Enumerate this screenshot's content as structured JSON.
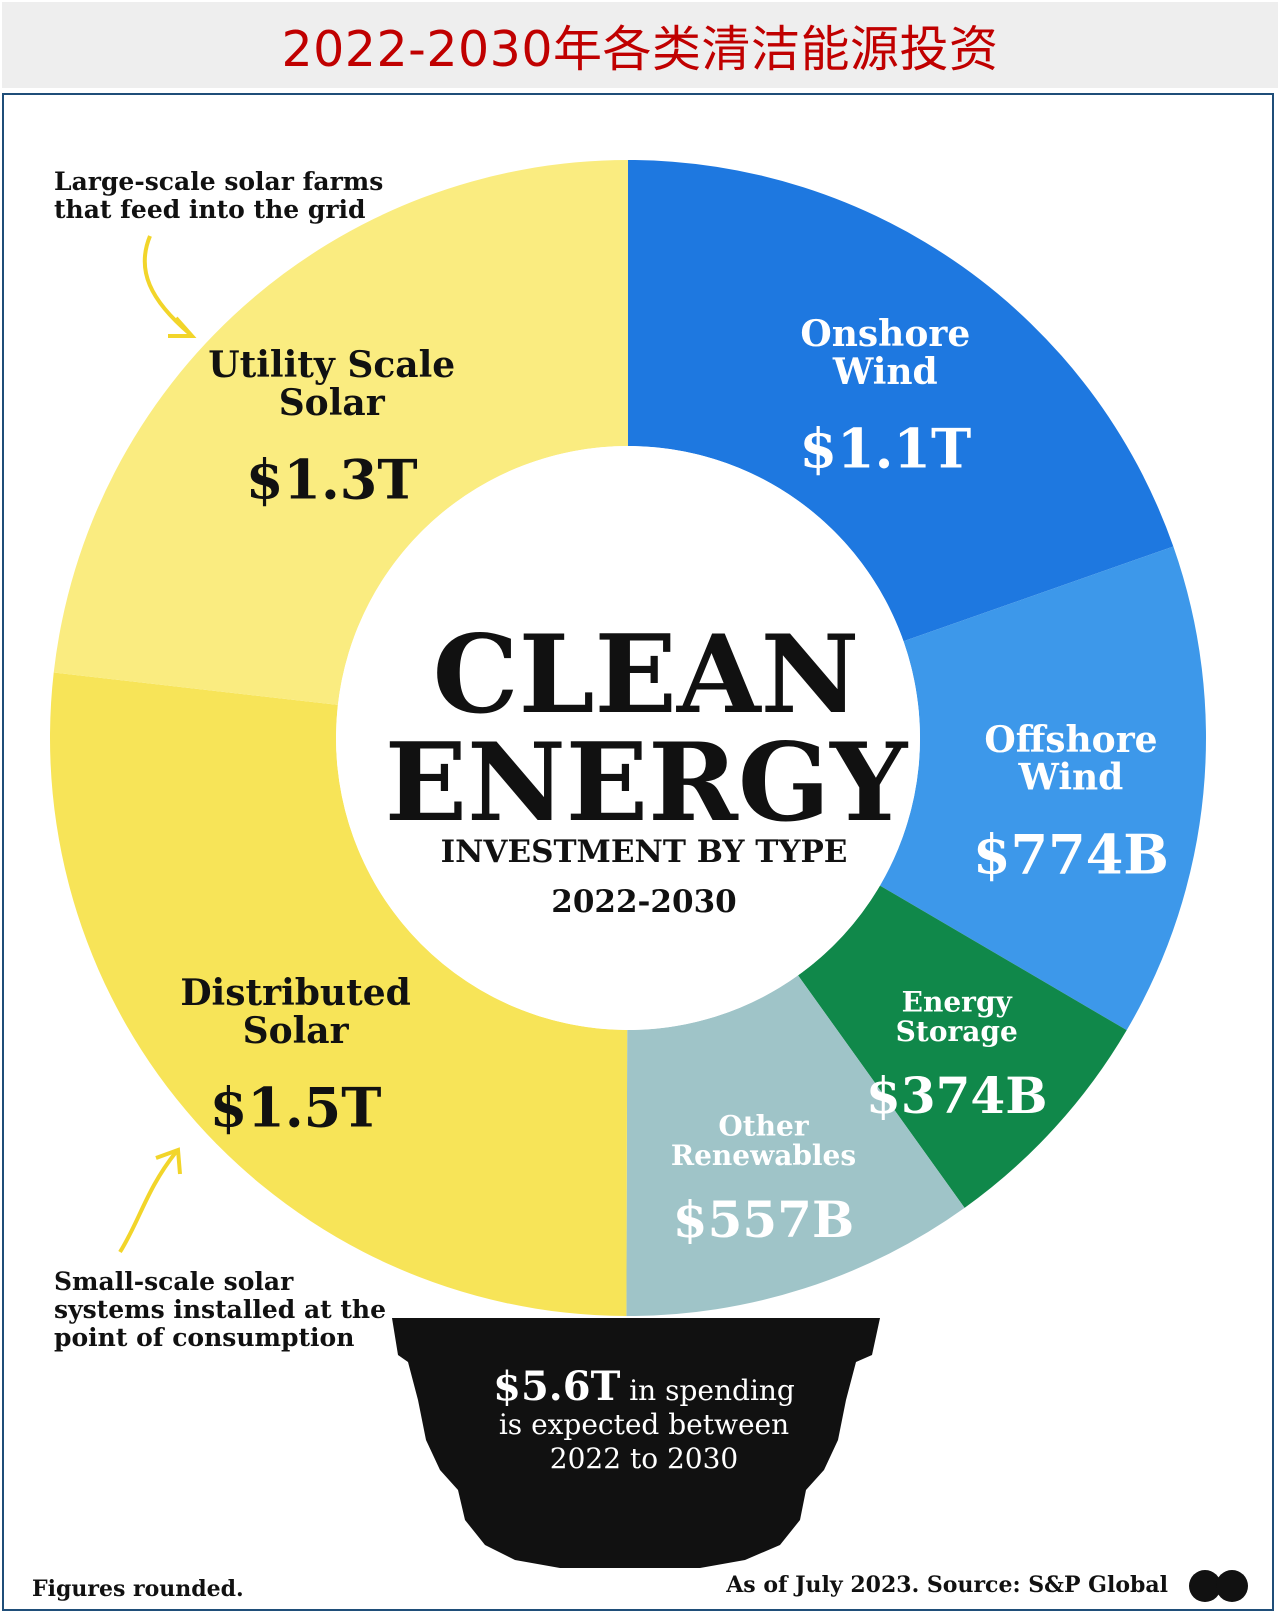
{
  "header": {
    "title": "2022-2030年各类清洁能源投资"
  },
  "chart_data": {
    "type": "pie",
    "center": {
      "line1": "CLEAN",
      "line2": "ENERGY",
      "subtitle": "INVESTMENT BY TYPE",
      "years": "2022-2030"
    },
    "slices": [
      {
        "name_lines": [
          "Onshore",
          "Wind"
        ],
        "value_label": "$1.1T",
        "value": 1.1,
        "color": "#1e78e0",
        "text_color": "#ffffff"
      },
      {
        "name_lines": [
          "Offshore",
          "Wind"
        ],
        "value_label": "$774B",
        "value": 0.774,
        "color": "#3d98ea",
        "text_color": "#ffffff"
      },
      {
        "name_lines": [
          "Energy",
          "Storage"
        ],
        "value_label": "$374B",
        "value": 0.374,
        "color": "#10884a",
        "text_color": "#ffffff"
      },
      {
        "name_lines": [
          "Other",
          "Renewables"
        ],
        "value_label": "$557B",
        "value": 0.557,
        "color": "#9fc4c8",
        "text_color": "#ffffff"
      },
      {
        "name_lines": [
          "Distributed",
          "Solar"
        ],
        "value_label": "$1.5T",
        "value": 1.5,
        "color": "#f7e458",
        "text_color": "#111111"
      },
      {
        "name_lines": [
          "Utility Scale",
          "Solar"
        ],
        "value_label": "$1.3T",
        "value": 1.3,
        "color": "#faec80",
        "text_color": "#111111"
      }
    ]
  },
  "annotations": {
    "utility_note": [
      "Large-scale solar farms",
      "that feed into the grid"
    ],
    "distributed_note": [
      "Small-scale solar",
      "systems installed at the",
      "point of consumption"
    ],
    "total_lines": [
      "$5.6T in spending",
      "is expected between",
      "2022 to 2030"
    ],
    "total_value": "$5.6T",
    "total_rest": " in spending"
  },
  "footer": {
    "left": "Figures rounded.",
    "right": "As of July 2023. Source: S&P Global"
  },
  "colors": {
    "accent_red": "#c00000",
    "bulb_base": "#111111",
    "arrow": "#f2d52a"
  }
}
